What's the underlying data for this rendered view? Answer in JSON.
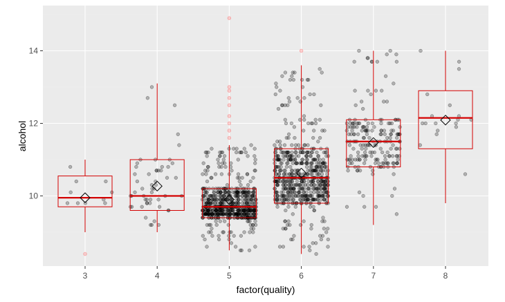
{
  "chart_data": {
    "type": "box",
    "xlabel": "factor(quality)",
    "ylabel": "alcohol",
    "categories": [
      "3",
      "4",
      "5",
      "6",
      "7",
      "8"
    ],
    "ylim": [
      8.0,
      15.2
    ],
    "yticks": [
      10,
      12,
      14
    ],
    "grid": true,
    "boxes": [
      {
        "category": "3",
        "whisker_low": 9.0,
        "q1": 9.7,
        "median": 9.95,
        "q3": 10.55,
        "whisker_high": 11.0,
        "mean": 9.95
      },
      {
        "category": "4",
        "whisker_low": 9.0,
        "q1": 9.6,
        "median": 10.0,
        "q3": 11.0,
        "whisker_high": 13.1,
        "mean": 10.27
      },
      {
        "category": "5",
        "whisker_low": 8.5,
        "q1": 9.4,
        "median": 9.7,
        "q3": 10.2,
        "whisker_high": 11.4,
        "mean": 9.9
      },
      {
        "category": "6",
        "whisker_low": 8.4,
        "q1": 9.8,
        "median": 10.5,
        "q3": 11.3,
        "whisker_high": 13.6,
        "mean": 10.63
      },
      {
        "category": "7",
        "whisker_low": 9.2,
        "q1": 10.8,
        "median": 11.5,
        "q3": 12.1,
        "whisker_high": 14.0,
        "mean": 11.47
      },
      {
        "category": "8",
        "whisker_low": 9.8,
        "q1": 11.3,
        "median": 12.15,
        "q3": 12.9,
        "whisker_high": 14.0,
        "mean": 12.09
      }
    ],
    "outliers": [
      {
        "category": "3",
        "values": [
          8.4
        ]
      },
      {
        "category": "5",
        "values": [
          11.6,
          11.8,
          12.0,
          12.2,
          12.5,
          12.7,
          12.9,
          13.0,
          14.9
        ]
      },
      {
        "category": "6",
        "values": [
          14.0
        ]
      }
    ],
    "jitter_counts": {
      "3": 10,
      "4": 53,
      "5": 681,
      "6": 638,
      "7": 199,
      "8": 18
    },
    "colors": {
      "panel": "#ebebeb",
      "grid_major": "#ffffff",
      "grid_minor": "#f2f2f2",
      "box": "#d40000",
      "outlier": "#ff7070",
      "point": "#000000",
      "mean_marker": "#000000"
    }
  }
}
